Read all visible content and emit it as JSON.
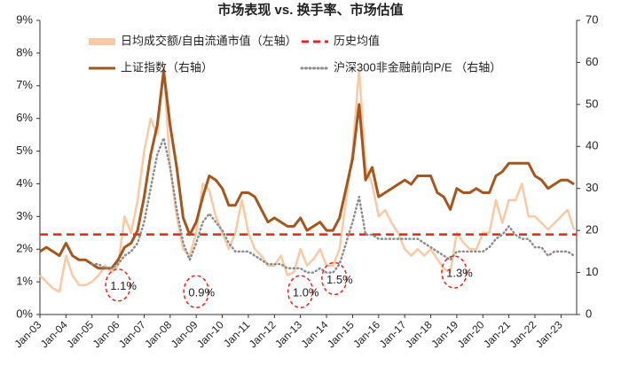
{
  "chart_data": {
    "type": "line",
    "title": "市场表现 vs. 换手率、市场估值",
    "xlim": [
      2003,
      2023.6
    ],
    "xticks": [
      {
        "value": 2003,
        "label": "Jan-03"
      },
      {
        "value": 2004,
        "label": "Jan-04"
      },
      {
        "value": 2005,
        "label": "Jan-05"
      },
      {
        "value": 2006,
        "label": "Jan-06"
      },
      {
        "value": 2007,
        "label": "Jan-07"
      },
      {
        "value": 2008,
        "label": "Jan-08"
      },
      {
        "value": 2009,
        "label": "Jan-09"
      },
      {
        "value": 2010,
        "label": "Jan-10"
      },
      {
        "value": 2011,
        "label": "Jan-11"
      },
      {
        "value": 2012,
        "label": "Jan-12"
      },
      {
        "value": 2013,
        "label": "Jan-13"
      },
      {
        "value": 2014,
        "label": "Jan-14"
      },
      {
        "value": 2015,
        "label": "Jan-15"
      },
      {
        "value": 2016,
        "label": "Jan-16"
      },
      {
        "value": 2017,
        "label": "Jan-17"
      },
      {
        "value": 2018,
        "label": "Jan-18"
      },
      {
        "value": 2019,
        "label": "Jan-19"
      },
      {
        "value": 2020,
        "label": "Jan-20"
      },
      {
        "value": 2021,
        "label": "Jan-21"
      },
      {
        "value": 2022,
        "label": "Jan-22"
      },
      {
        "value": 2023,
        "label": "Jan-23"
      }
    ],
    "ylim": [
      0,
      9
    ],
    "yticks": [
      {
        "value": 0,
        "label": "0%"
      },
      {
        "value": 1,
        "label": "1%"
      },
      {
        "value": 2,
        "label": "2%"
      },
      {
        "value": 3,
        "label": "3%"
      },
      {
        "value": 4,
        "label": "4%"
      },
      {
        "value": 5,
        "label": "5%"
      },
      {
        "value": 6,
        "label": "6%"
      },
      {
        "value": 7,
        "label": "7%"
      },
      {
        "value": 8,
        "label": "8%"
      },
      {
        "value": 9,
        "label": "9%"
      }
    ],
    "y2lim": [
      0,
      70
    ],
    "y2ticks": [
      0,
      10,
      20,
      30,
      40,
      50,
      60,
      70
    ],
    "x": [
      2003,
      2003.25,
      2003.5,
      2003.75,
      2004,
      2004.25,
      2004.5,
      2004.75,
      2005,
      2005.25,
      2005.5,
      2005.75,
      2006,
      2006.25,
      2006.5,
      2006.75,
      2007,
      2007.25,
      2007.5,
      2007.75,
      2008,
      2008.25,
      2008.5,
      2008.75,
      2009,
      2009.25,
      2009.5,
      2009.75,
      2010,
      2010.25,
      2010.5,
      2010.75,
      2011,
      2011.25,
      2011.5,
      2011.75,
      2012,
      2012.25,
      2012.5,
      2012.75,
      2013,
      2013.25,
      2013.5,
      2013.75,
      2014,
      2014.25,
      2014.5,
      2014.75,
      2015,
      2015.25,
      2015.5,
      2015.75,
      2016,
      2016.25,
      2016.5,
      2016.75,
      2017,
      2017.25,
      2017.5,
      2017.75,
      2018,
      2018.25,
      2018.5,
      2018.75,
      2019,
      2019.25,
      2019.5,
      2019.75,
      2020,
      2020.25,
      2020.5,
      2020.75,
      2021,
      2021.25,
      2021.5,
      2021.75,
      2022,
      2022.25,
      2022.5,
      2022.75,
      2023,
      2023.25,
      2023.5
    ],
    "series": [
      {
        "name": "日均成交额/自由流通市值（左轴）",
        "color": "#f8c9a4",
        "axis": "y",
        "style": "solid",
        "width": 2.5,
        "values": [
          1.2,
          1.0,
          0.8,
          0.7,
          1.8,
          1.2,
          0.9,
          0.9,
          1.0,
          1.2,
          1.5,
          1.3,
          1.5,
          3.0,
          2.5,
          3.5,
          5.0,
          6.0,
          5.5,
          7.5,
          4.5,
          3.0,
          2.0,
          1.8,
          2.5,
          4.0,
          3.8,
          3.0,
          2.5,
          2.0,
          2.5,
          3.5,
          2.5,
          2.0,
          1.8,
          1.5,
          1.5,
          1.8,
          1.2,
          1.3,
          2.0,
          1.5,
          1.7,
          2.0,
          1.5,
          1.5,
          2.0,
          3.5,
          5.0,
          7.5,
          4.5,
          4.0,
          3.0,
          3.2,
          2.8,
          2.5,
          2.0,
          1.8,
          2.0,
          1.8,
          2.0,
          1.7,
          1.4,
          1.3,
          2.5,
          2.2,
          2.0,
          2.0,
          2.5,
          2.5,
          3.5,
          2.8,
          3.5,
          3.5,
          4.0,
          3.0,
          3.0,
          2.8,
          2.6,
          2.8,
          3.0,
          3.2,
          2.6
        ]
      },
      {
        "name": "上证指数（右轴）",
        "color": "#a4561c",
        "axis": "y2",
        "style": "solid",
        "width": 3,
        "values": [
          15,
          16,
          15,
          14,
          17,
          14,
          13,
          13,
          12,
          11,
          11,
          11,
          13,
          16,
          17,
          20,
          28,
          38,
          45,
          58,
          45,
          35,
          23,
          19,
          22,
          28,
          33,
          32,
          30,
          26,
          26,
          29,
          29,
          28,
          25,
          22,
          23,
          22,
          21,
          21,
          23,
          20,
          21,
          22,
          20,
          20,
          23,
          30,
          37,
          50,
          32,
          35,
          28,
          29,
          30,
          31,
          32,
          31,
          33,
          33,
          33,
          29,
          28,
          25,
          30,
          29,
          29,
          30,
          29,
          29,
          33,
          34,
          36,
          36,
          36,
          36,
          33,
          32,
          30,
          31,
          32,
          32,
          31
        ]
      },
      {
        "name": "沪深300非金融前向P/E （右轴）",
        "color": "#8c8c8c",
        "axis": "y2",
        "style": "dotted",
        "width": 2.5,
        "values": [
          null,
          null,
          null,
          null,
          null,
          null,
          null,
          null,
          12,
          12,
          11,
          11,
          12,
          14,
          15,
          17,
          22,
          30,
          38,
          42,
          35,
          25,
          17,
          13,
          17,
          22,
          24,
          22,
          20,
          17,
          15,
          15,
          15,
          14,
          13,
          12,
          12,
          12,
          11,
          11,
          11,
          10,
          10,
          11,
          10,
          10,
          12,
          17,
          22,
          28,
          19,
          19,
          18,
          18,
          18,
          18,
          18,
          18,
          18,
          17,
          16,
          15,
          14,
          13,
          15,
          15,
          15,
          15,
          15,
          16,
          18,
          19,
          21,
          19,
          18,
          18,
          16,
          16,
          14,
          15,
          15,
          15,
          14
        ]
      }
    ],
    "mean_line": {
      "name": "历史均值",
      "value": 2.45,
      "color": "#e8221f"
    },
    "annotations": [
      {
        "label": "1.1%",
        "x": 2006,
        "y": 0.9
      },
      {
        "label": "0.9%",
        "x": 2009,
        "y": 0.7
      },
      {
        "label": "1.0%",
        "x": 2013,
        "y": 0.7
      },
      {
        "label": "1.5%",
        "x": 2014.3,
        "y": 1.1
      },
      {
        "label": "1.3%",
        "x": 2018.9,
        "y": 1.3
      }
    ]
  }
}
